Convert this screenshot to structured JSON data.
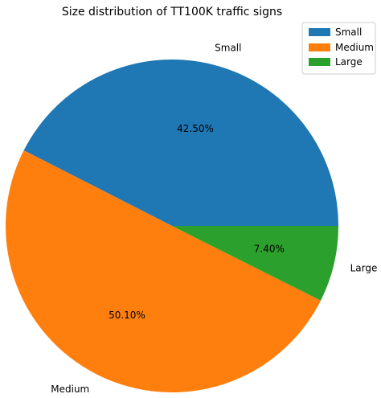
{
  "chart_data": {
    "type": "pie",
    "title": "Size distribution of TT100K traffic signs",
    "categories": [
      "Small",
      "Medium",
      "Large"
    ],
    "values": [
      42.5,
      50.1,
      7.4
    ],
    "percent_labels": [
      "42.50%",
      "50.10%",
      "7.40%"
    ],
    "colors": [
      "#1f77b4",
      "#ff7f0e",
      "#2ca02c"
    ],
    "start_angle_deg": 0,
    "direction": "counterclockwise",
    "legend": {
      "placement": "top-right",
      "entries": [
        "Small",
        "Medium",
        "Large"
      ]
    }
  }
}
